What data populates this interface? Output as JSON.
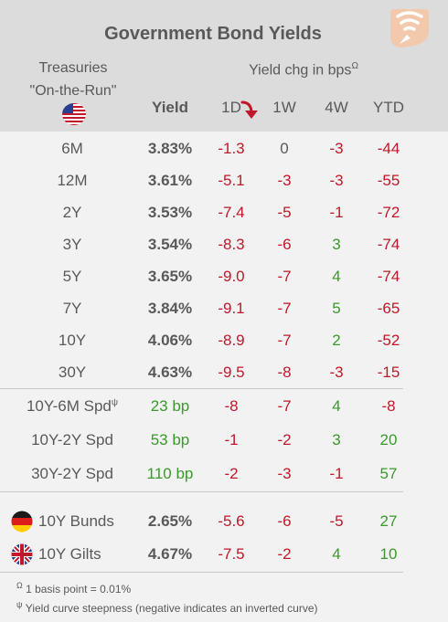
{
  "title": "Government Bond Yields",
  "treasuries_line1": "Treasuries",
  "treasuries_line2": "\"On-the-Run\"",
  "yield_chg_label": "Yield chg in bps",
  "yield_chg_marker": "Ω",
  "columns": {
    "yield": "Yield",
    "d1": "1D",
    "w1": "1W",
    "w4": "4W",
    "ytd": "YTD"
  },
  "colors": {
    "negative": "#c0182a",
    "positive": "#3a9a2a",
    "neutral": "#595959",
    "header_bg": "#dcdcdc",
    "body_bg": "#f2f2f2"
  },
  "logo_icon": "wifi-signal-logo",
  "chart_data": {
    "type": "table",
    "title": "Government Bond Yields",
    "rows": [
      {
        "label": "6M",
        "yield": "3.83%",
        "d1": "-1.3",
        "w1": "0",
        "w4": "-3",
        "ytd": "-44"
      },
      {
        "label": "12M",
        "yield": "3.61%",
        "d1": "-5.1",
        "w1": "-3",
        "w4": "-3",
        "ytd": "-55"
      },
      {
        "label": "2Y",
        "yield": "3.53%",
        "d1": "-7.4",
        "w1": "-5",
        "w4": "-1",
        "ytd": "-72"
      },
      {
        "label": "3Y",
        "yield": "3.54%",
        "d1": "-8.3",
        "w1": "-6",
        "w4": "3",
        "ytd": "-74"
      },
      {
        "label": "5Y",
        "yield": "3.65%",
        "d1": "-9.0",
        "w1": "-7",
        "w4": "4",
        "ytd": "-74"
      },
      {
        "label": "7Y",
        "yield": "3.84%",
        "d1": "-9.1",
        "w1": "-7",
        "w4": "5",
        "ytd": "-65"
      },
      {
        "label": "10Y",
        "yield": "4.06%",
        "d1": "-8.9",
        "w1": "-7",
        "w4": "2",
        "ytd": "-52"
      },
      {
        "label": "30Y",
        "yield": "4.63%",
        "d1": "-9.5",
        "w1": "-8",
        "w4": "-3",
        "ytd": "-15"
      }
    ],
    "spreads": [
      {
        "label": "10Y-6M Spd",
        "marker": "ψ",
        "yield": "23 bp",
        "d1": "-8",
        "w1": "-7",
        "w4": "4",
        "ytd": "-8"
      },
      {
        "label": "10Y-2Y Spd",
        "yield": "53 bp",
        "d1": "-1",
        "w1": "-2",
        "w4": "3",
        "ytd": "20"
      },
      {
        "label": "30Y-2Y Spd",
        "yield": "110 bp",
        "d1": "-2",
        "w1": "-3",
        "w4": "-1",
        "ytd": "57"
      }
    ],
    "foreign": [
      {
        "label": "10Y Bunds",
        "flag": "germany-flag-icon",
        "yield": "2.65%",
        "d1": "-5.6",
        "w1": "-6",
        "w4": "-5",
        "ytd": "27"
      },
      {
        "label": "10Y Gilts",
        "flag": "uk-flag-icon",
        "yield": "4.67%",
        "d1": "-7.5",
        "w1": "-2",
        "w4": "4",
        "ytd": "10"
      }
    ]
  },
  "footnotes": [
    {
      "marker": "Ω",
      "text": "1 basis point = 0.01%"
    },
    {
      "marker": "ψ",
      "text": "Yield curve steepness (negative indicates an inverted curve)"
    }
  ]
}
